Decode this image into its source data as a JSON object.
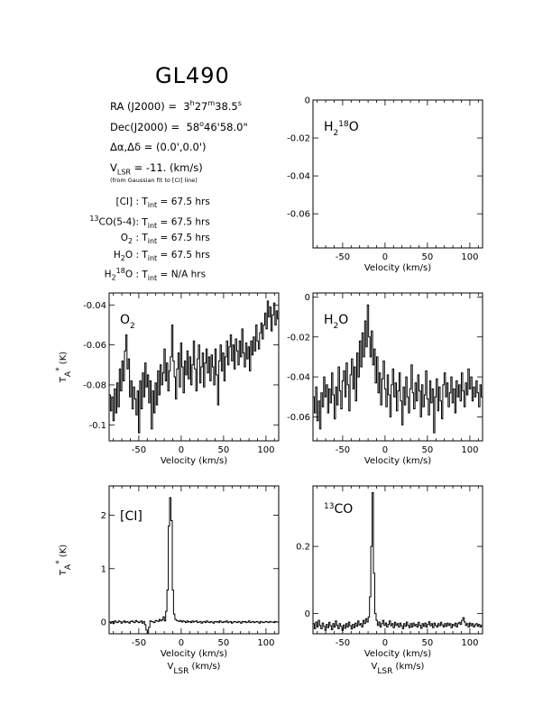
{
  "page": {
    "title": "GL490",
    "info": {
      "ra": {
        "label": "RA (J2000) =",
        "h": "3",
        "m": "27",
        "s": "38.5"
      },
      "dec": {
        "label": "Dec(J2000) =",
        "d": "58",
        "am": "46'58.0\""
      },
      "offset": {
        "label": "Δα,Δδ =",
        "value": "(0.0',0.0')"
      },
      "vlsr": {
        "label_main": "V",
        "label_sub": "LSR",
        "value": "= -11. (km/s)"
      },
      "fit_note": "(from Gaussian fit to [CI] line)",
      "integrations": [
        {
          "line_html": "[CI] :",
          "tint": "67.5 hrs"
        },
        {
          "line_html": "<sup>13</sup>CO(5-4):",
          "tint": "67.5 hrs"
        },
        {
          "line_html": "O<sub>2</sub> :",
          "tint": "67.5 hrs"
        },
        {
          "line_html": "H<sub>2</sub>O :",
          "tint": "67.5 hrs"
        },
        {
          "line_html": "H<sub>2</sub><sup>18</sup>O :",
          "tint": "N/A hrs"
        }
      ]
    }
  },
  "chart_data": [
    {
      "id": "h218o",
      "type": "line",
      "label": "H218O",
      "xlim": [
        -85,
        115
      ],
      "ylim": [
        -0.078,
        0.0
      ],
      "yticks": [
        0,
        -0.02,
        -0.04,
        -0.06
      ],
      "ytick_labels": [
        "0",
        "-0.02",
        "-0.04",
        "-0.06"
      ],
      "xticks": [
        -50,
        0,
        50,
        100
      ],
      "xtick_labels": [
        "-50",
        "0",
        "50",
        "100"
      ],
      "xlabel": "Velocity (km/s)",
      "ylabel": "",
      "xlabel2": "",
      "y": []
    },
    {
      "id": "o2",
      "type": "line",
      "label": "O2",
      "xlim": [
        -85,
        115
      ],
      "ylim": [
        -0.108,
        -0.034
      ],
      "yticks": [
        -0.04,
        -0.06,
        -0.08,
        -0.1
      ],
      "ytick_labels": [
        "-0.04",
        "-0.06",
        "-0.08",
        "-0.1"
      ],
      "xticks": [
        -50,
        0,
        50,
        100
      ],
      "xtick_labels": [
        "-50",
        "0",
        "50",
        "100"
      ],
      "xlabel": "Velocity (km/s)",
      "ylabel": "TA* (K)",
      "xlabel2": "",
      "y": [
        -0.085,
        -0.093,
        -0.086,
        -0.098,
        -0.082,
        -0.094,
        -0.079,
        -0.091,
        -0.072,
        -0.083,
        -0.068,
        -0.078,
        -0.063,
        -0.055,
        -0.072,
        -0.067,
        -0.086,
        -0.078,
        -0.092,
        -0.081,
        -0.087,
        -0.095,
        -0.083,
        -0.104,
        -0.078,
        -0.092,
        -0.074,
        -0.086,
        -0.069,
        -0.081,
        -0.075,
        -0.089,
        -0.078,
        -0.102,
        -0.083,
        -0.094,
        -0.079,
        -0.09,
        -0.073,
        -0.085,
        -0.07,
        -0.08,
        -0.074,
        -0.062,
        -0.078,
        -0.069,
        -0.083,
        -0.073,
        -0.066,
        -0.05,
        -0.068,
        -0.076,
        -0.087,
        -0.072,
        -0.064,
        -0.081,
        -0.059,
        -0.071,
        -0.084,
        -0.068,
        -0.075,
        -0.063,
        -0.077,
        -0.066,
        -0.08,
        -0.07,
        -0.058,
        -0.072,
        -0.083,
        -0.067,
        -0.06,
        -0.079,
        -0.071,
        -0.064,
        -0.081,
        -0.069,
        -0.062,
        -0.074,
        -0.066,
        -0.078,
        -0.065,
        -0.071,
        -0.08,
        -0.062,
        -0.075,
        -0.09,
        -0.068,
        -0.06,
        -0.073,
        -0.064,
        -0.078,
        -0.066,
        -0.058,
        -0.07,
        -0.061,
        -0.055,
        -0.068,
        -0.06,
        -0.072,
        -0.057,
        -0.063,
        -0.07,
        -0.058,
        -0.066,
        -0.052,
        -0.064,
        -0.071,
        -0.059,
        -0.067,
        -0.061,
        -0.073,
        -0.058,
        -0.065,
        -0.056,
        -0.063,
        -0.05,
        -0.058,
        -0.062,
        -0.054,
        -0.049,
        -0.057,
        -0.05,
        -0.044,
        -0.052,
        -0.038,
        -0.046,
        -0.041,
        -0.053,
        -0.045,
        -0.039,
        -0.05,
        -0.043,
        -0.047
      ]
    },
    {
      "id": "h2o",
      "type": "line",
      "label": "H2O",
      "xlim": [
        -85,
        115
      ],
      "ylim": [
        -0.072,
        0.002
      ],
      "yticks": [
        0,
        -0.02,
        -0.04,
        -0.06
      ],
      "ytick_labels": [
        "0",
        "-0.02",
        "-0.04",
        "-0.06"
      ],
      "xticks": [
        -50,
        0,
        50,
        100
      ],
      "xtick_labels": [
        "-50",
        "0",
        "50",
        "100"
      ],
      "xlabel": "Velocity (km/s)",
      "ylabel": "",
      "xlabel2": "",
      "y": [
        -0.05,
        -0.058,
        -0.045,
        -0.062,
        -0.052,
        -0.066,
        -0.048,
        -0.055,
        -0.04,
        -0.05,
        -0.044,
        -0.058,
        -0.046,
        -0.053,
        -0.038,
        -0.049,
        -0.061,
        -0.045,
        -0.054,
        -0.035,
        -0.047,
        -0.056,
        -0.042,
        -0.037,
        -0.05,
        -0.033,
        -0.044,
        -0.057,
        -0.039,
        -0.031,
        -0.046,
        -0.035,
        -0.052,
        -0.028,
        -0.04,
        -0.022,
        -0.035,
        -0.018,
        -0.03,
        -0.012,
        -0.025,
        -0.004,
        -0.02,
        -0.03,
        -0.017,
        -0.034,
        -0.026,
        -0.043,
        -0.03,
        -0.048,
        -0.038,
        -0.054,
        -0.041,
        -0.032,
        -0.046,
        -0.055,
        -0.039,
        -0.049,
        -0.06,
        -0.044,
        -0.036,
        -0.05,
        -0.043,
        -0.057,
        -0.047,
        -0.038,
        -0.052,
        -0.064,
        -0.045,
        -0.054,
        -0.04,
        -0.05,
        -0.058,
        -0.046,
        -0.034,
        -0.048,
        -0.056,
        -0.043,
        -0.052,
        -0.039,
        -0.047,
        -0.06,
        -0.044,
        -0.055,
        -0.049,
        -0.037,
        -0.051,
        -0.059,
        -0.042,
        -0.053,
        -0.046,
        -0.068,
        -0.05,
        -0.041,
        -0.057,
        -0.045,
        -0.052,
        -0.061,
        -0.044,
        -0.038,
        -0.05,
        -0.043,
        -0.055,
        -0.048,
        -0.04,
        -0.053,
        -0.046,
        -0.058,
        -0.042,
        -0.05,
        -0.044,
        -0.052,
        -0.038,
        -0.047,
        -0.055,
        -0.043,
        -0.049,
        -0.036,
        -0.046,
        -0.04,
        -0.052,
        -0.045,
        -0.05,
        -0.042,
        -0.048,
        -0.055,
        -0.044,
        -0.05
      ]
    },
    {
      "id": "ci",
      "type": "line",
      "label": "[CI]",
      "xlim": [
        -85,
        115
      ],
      "ylim": [
        -0.22,
        2.55
      ],
      "yticks": [
        0,
        1,
        2
      ],
      "ytick_labels": [
        "0",
        "1",
        "2"
      ],
      "xticks": [
        -50,
        0,
        50,
        100
      ],
      "xtick_labels": [
        "-50",
        "0",
        "50",
        "100"
      ],
      "xlabel": "Velocity (km/s)",
      "ylabel": "TA* (K)",
      "xlabel2": "VLSR (km/s)",
      "y": [
        0.0,
        -0.02,
        0.01,
        -0.03,
        0.02,
        0.0,
        -0.01,
        0.02,
        0.01,
        -0.02,
        0.0,
        0.02,
        -0.01,
        0.01,
        0.0,
        -0.02,
        0.01,
        0.02,
        0.0,
        -0.01,
        0.03,
        0.01,
        -0.01,
        0.0,
        0.02,
        -0.02,
        0.01,
        -0.05,
        -0.15,
        -0.22,
        -0.1,
        0.02,
        0.01,
        0.0,
        -0.01,
        0.03,
        0.02,
        0.01,
        0.05,
        0.02,
        0.04,
        0.1,
        0.02,
        0.2,
        0.6,
        1.8,
        2.33,
        1.9,
        0.6,
        0.15,
        0.05,
        0.03,
        0.02,
        0.01,
        0.03,
        0.0,
        0.02,
        0.01,
        -0.01,
        0.02,
        0.0,
        0.01,
        -0.01,
        0.02,
        0.0,
        0.01,
        0.02,
        -0.01,
        0.0,
        0.01,
        -0.02,
        0.0,
        0.01,
        -0.01,
        0.02,
        0.0,
        -0.01,
        0.01,
        0.0,
        -0.02,
        0.01,
        0.0,
        0.01,
        -0.01,
        0.02,
        0.0,
        -0.01,
        0.01,
        0.0,
        0.02,
        -0.01,
        0.0,
        0.01,
        -0.02,
        0.0,
        0.01,
        0.0,
        -0.01,
        0.01,
        0.0,
        -0.02,
        0.01,
        0.0,
        0.01,
        -0.01,
        0.0,
        0.02,
        -0.01,
        0.0,
        0.01,
        -0.01,
        0.0,
        0.01,
        0.0,
        -0.02,
        0.01,
        0.0,
        -0.01,
        0.0,
        0.01,
        0.0,
        -0.01,
        0.01,
        0.0,
        0.0,
        -0.01,
        0.01,
        0.0,
        0.0
      ]
    },
    {
      "id": "13co",
      "type": "line",
      "label": "13CO",
      "xlim": [
        -85,
        115
      ],
      "ylim": [
        -0.06,
        0.38
      ],
      "yticks": [
        0,
        0.2
      ],
      "ytick_labels": [
        "0",
        "0.2"
      ],
      "xticks": [
        -50,
        0,
        50,
        100
      ],
      "xtick_labels": [
        "-50",
        "0",
        "50",
        "100"
      ],
      "xlabel": "Velocity (km/s)",
      "ylabel": "",
      "xlabel2": "VLSR (km/s)",
      "y": [
        -0.03,
        -0.045,
        -0.025,
        -0.04,
        -0.02,
        -0.035,
        -0.045,
        -0.028,
        -0.038,
        -0.05,
        -0.032,
        -0.042,
        -0.026,
        -0.036,
        -0.048,
        -0.03,
        -0.04,
        -0.022,
        -0.035,
        -0.045,
        -0.03,
        -0.038,
        -0.05,
        -0.034,
        -0.044,
        -0.03,
        -0.04,
        -0.025,
        -0.036,
        -0.046,
        -0.032,
        -0.042,
        -0.028,
        -0.038,
        -0.022,
        -0.034,
        -0.03,
        -0.04,
        -0.02,
        -0.03,
        -0.015,
        -0.025,
        -0.01,
        0.05,
        0.2,
        0.36,
        0.12,
        0.0,
        -0.02,
        -0.035,
        -0.025,
        -0.04,
        -0.03,
        -0.02,
        -0.035,
        -0.028,
        -0.04,
        -0.032,
        -0.022,
        -0.036,
        -0.03,
        -0.042,
        -0.026,
        -0.035,
        -0.03,
        -0.04,
        -0.028,
        -0.036,
        -0.045,
        -0.03,
        -0.038,
        -0.025,
        -0.035,
        -0.042,
        -0.03,
        -0.04,
        -0.028,
        -0.036,
        -0.032,
        -0.04,
        -0.026,
        -0.035,
        -0.044,
        -0.03,
        -0.038,
        -0.028,
        -0.04,
        -0.032,
        -0.024,
        -0.036,
        -0.03,
        -0.042,
        -0.028,
        -0.035,
        -0.04,
        -0.03,
        -0.036,
        -0.026,
        -0.034,
        -0.04,
        -0.03,
        -0.038,
        -0.028,
        -0.035,
        -0.03,
        -0.042,
        -0.032,
        -0.036,
        -0.028,
        -0.04,
        -0.03,
        -0.026,
        -0.032,
        -0.02,
        -0.012,
        -0.025,
        -0.035,
        -0.03,
        -0.04,
        -0.028,
        -0.036,
        -0.03,
        -0.04,
        -0.034,
        -0.03,
        -0.038,
        -0.032,
        -0.04,
        -0.035
      ]
    }
  ]
}
